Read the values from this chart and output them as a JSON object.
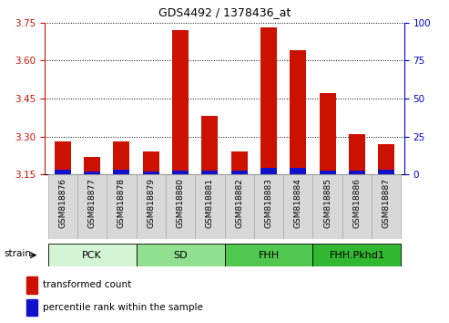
{
  "title": "GDS4492 / 1378436_at",
  "samples": [
    "GSM818876",
    "GSM818877",
    "GSM818878",
    "GSM818879",
    "GSM818880",
    "GSM818881",
    "GSM818882",
    "GSM818883",
    "GSM818884",
    "GSM818885",
    "GSM818886",
    "GSM818887"
  ],
  "red_values": [
    3.28,
    3.22,
    3.28,
    3.24,
    3.72,
    3.38,
    3.24,
    3.73,
    3.64,
    3.47,
    3.31,
    3.27
  ],
  "blue_values": [
    3.17,
    3.16,
    3.17,
    3.16,
    3.165,
    3.165,
    3.165,
    3.175,
    3.175,
    3.165,
    3.165,
    3.17
  ],
  "ylim_left": [
    3.15,
    3.75
  ],
  "ylim_right": [
    0,
    100
  ],
  "yticks_left": [
    3.15,
    3.3,
    3.45,
    3.6,
    3.75
  ],
  "yticks_right": [
    0,
    25,
    50,
    75,
    100
  ],
  "groups": [
    {
      "label": "PCK",
      "start": 0,
      "end": 3,
      "color": "#d4f5d4"
    },
    {
      "label": "SD",
      "start": 3,
      "end": 6,
      "color": "#90e090"
    },
    {
      "label": "FHH",
      "start": 6,
      "end": 9,
      "color": "#50c850"
    },
    {
      "label": "FHH.Pkhd1",
      "start": 9,
      "end": 12,
      "color": "#30b830"
    }
  ],
  "bar_width": 0.55,
  "bar_color_red": "#cc1100",
  "bar_color_blue": "#1111cc",
  "bg_color": "#ffffff",
  "left_axis_color": "#cc1100",
  "right_axis_color": "#0000cc",
  "label_strain": "strain",
  "legend_red": "transformed count",
  "legend_blue": "percentile rank within the sample",
  "sample_box_color": "#d8d8d8",
  "title_fontsize": 9,
  "tick_fontsize": 7.5,
  "sample_fontsize": 6.5,
  "group_fontsize": 8,
  "legend_fontsize": 7.5
}
